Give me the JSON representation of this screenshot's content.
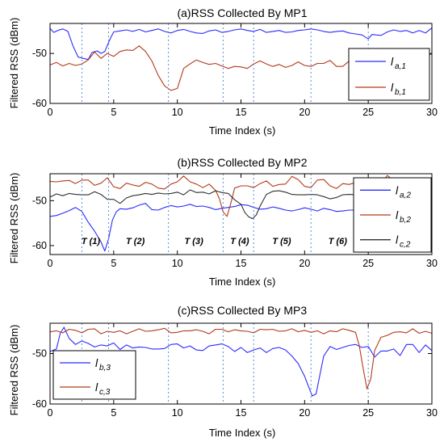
{
  "chart_data": [
    {
      "type": "line",
      "title": "(a)RSS Collected By MP1",
      "xlabel": "Time Index (s)",
      "ylabel": "Filtered RSS (dBm)",
      "xlim": [
        0,
        30
      ],
      "ylim": [
        -60,
        -44
      ],
      "xticks": [
        0,
        5,
        10,
        15,
        20,
        25,
        30
      ],
      "yticks": [
        -50,
        -60
      ],
      "grid": false,
      "legend_position": "right",
      "vlines": [
        2.5,
        4.6,
        9.3,
        13.6,
        16.0,
        20.5,
        25.0
      ],
      "series": [
        {
          "name": "l",
          "sub": "a,1",
          "color": "#2b2bff",
          "x": [
            0,
            0.3,
            0.6,
            1,
            1.4,
            1.8,
            2.2,
            2.6,
            3,
            3.3,
            3.7,
            4,
            4.3,
            4.7,
            5,
            5.5,
            6,
            6.5,
            7,
            7.5,
            8,
            8.5,
            9,
            9.5,
            10,
            10.5,
            11,
            11.5,
            12,
            12.5,
            13,
            13.5,
            14,
            14.5,
            15,
            15.5,
            16,
            16.5,
            17,
            17.5,
            18,
            18.5,
            19,
            19.5,
            20,
            20.5,
            21,
            21.5,
            22,
            22.5,
            23,
            23.5,
            24,
            24.5,
            25,
            25.3,
            25.6,
            26,
            26.5,
            27,
            27.5,
            28,
            28.5,
            29,
            29.5,
            30
          ],
          "y": [
            -45,
            -45.8,
            -45.4,
            -45.1,
            -45.6,
            -48.5,
            -50.7,
            -51,
            -51.2,
            -49.8,
            -49.5,
            -50,
            -49.6,
            -47.2,
            -45.7,
            -45.5,
            -45.3,
            -45.6,
            -45.2,
            -45.7,
            -45.4,
            -45.1,
            -45.6,
            -45.9,
            -45.4,
            -45.2,
            -45.6,
            -45.9,
            -46,
            -45.5,
            -45.3,
            -45.8,
            -45.6,
            -45.3,
            -45.1,
            -45.4,
            -45.6,
            -45.2,
            -45.8,
            -45.6,
            -45.4,
            -45.8,
            -45.7,
            -45.4,
            -45.3,
            -45.1,
            -45.3,
            -45.6,
            -45.8,
            -45.6,
            -45.5,
            -45.9,
            -46.1,
            -46.3,
            -47.1,
            -46.2,
            -46.3,
            -46.4,
            -45.7,
            -45.3,
            -45.6,
            -45.4,
            -45.9,
            -45.4,
            -45.9,
            -44.9
          ]
        },
        {
          "name": "l",
          "sub": "b,1",
          "color": "#b33a1a",
          "x": [
            0,
            0.5,
            1,
            1.5,
            2,
            2.5,
            3,
            3.5,
            4,
            4.5,
            5,
            5.5,
            6,
            6.5,
            7,
            7.5,
            8,
            8.5,
            9,
            9.5,
            10,
            10.5,
            11,
            11.5,
            12,
            12.5,
            13,
            13.5,
            14,
            14.5,
            15,
            15.5,
            16,
            16.5,
            17,
            17.5,
            18,
            18.5,
            19,
            19.5,
            20,
            20.5,
            21,
            21.5,
            22,
            22.5,
            23,
            23.5,
            24,
            24.5,
            25,
            25.5,
            26,
            26.5,
            27,
            27.5,
            28,
            28.5,
            29,
            29.5,
            30
          ],
          "y": [
            -52.3,
            -51.8,
            -52.5,
            -52,
            -52.4,
            -52.1,
            -51.3,
            -49.7,
            -51,
            -50,
            -50.6,
            -49.6,
            -49.3,
            -49.4,
            -48.5,
            -49.6,
            -51.5,
            -54.4,
            -56.5,
            -57.4,
            -57,
            -53,
            -52.1,
            -51.3,
            -51.8,
            -52.2,
            -52,
            -52.5,
            -53,
            -52.6,
            -52.7,
            -53,
            -52.1,
            -51.5,
            -52.1,
            -52.6,
            -52.2,
            -52.8,
            -52.4,
            -51.7,
            -52.4,
            -52.6,
            -52,
            -52,
            -51.4,
            -52.6,
            -52.6,
            -51.5,
            -52.2,
            -51.6,
            -51.4,
            -52.4,
            -51.9,
            -52,
            -51.8,
            -51.5,
            -51.7,
            -50.2,
            -50,
            -50.5,
            -50.1
          ]
        }
      ]
    },
    {
      "type": "line",
      "title": "(b)RSS Collected By MP2",
      "xlabel": "Time Index (s)",
      "ylabel": "Filtered RSS (dBm)",
      "xlim": [
        0,
        30
      ],
      "ylim": [
        -62,
        -44
      ],
      "xticks": [
        0,
        5,
        10,
        15,
        20,
        25,
        30
      ],
      "yticks": [
        -50,
        -60
      ],
      "grid": false,
      "legend_position": "right",
      "vlines": [
        2.5,
        4.6,
        9.3,
        13.6,
        16.0,
        20.5,
        25.0
      ],
      "annotations": [
        {
          "text": "T (1)",
          "x": 3.2
        },
        {
          "text": "T (2)",
          "x": 6.7
        },
        {
          "text": "T (3)",
          "x": 11.3
        },
        {
          "text": "T (4)",
          "x": 14.9
        },
        {
          "text": "T (5)",
          "x": 18.2
        },
        {
          "text": "T (6)",
          "x": 22.6
        }
      ],
      "series": [
        {
          "name": "l",
          "sub": "a,2",
          "color": "#2b2bff",
          "x": [
            0,
            0.5,
            1,
            1.5,
            2,
            2.5,
            3,
            3.5,
            4,
            4.3,
            4.6,
            4.9,
            5.2,
            5.5,
            6,
            6.5,
            7,
            7.5,
            8,
            8.5,
            9,
            9.5,
            10,
            10.5,
            11,
            11.5,
            12,
            12.5,
            13,
            13.5,
            14,
            14.5,
            15,
            15.5,
            16,
            16.5,
            17,
            17.5,
            18,
            18.5,
            19,
            19.5,
            20,
            20.5,
            21,
            21.5,
            22,
            22.5,
            23,
            23.5,
            24,
            24.5,
            25,
            25.5,
            26,
            26.5,
            27,
            27.5,
            28,
            28.5,
            29,
            29.5,
            30
          ],
          "y": [
            -53.5,
            -53.3,
            -52.8,
            -52.2,
            -51.5,
            -52.4,
            -54.8,
            -56.8,
            -59.2,
            -61.2,
            -58.5,
            -54.3,
            -52.5,
            -51.8,
            -51.9,
            -51.6,
            -51,
            -50.6,
            -52,
            -52.1,
            -51.5,
            -51.1,
            -51.4,
            -51.2,
            -50.8,
            -51.3,
            -51.2,
            -51.5,
            -52,
            -51.7,
            -51.5,
            -51.3,
            -50.9,
            -51,
            -51.5,
            -51.9,
            -51.8,
            -51.4,
            -51.7,
            -52.1,
            -52.3,
            -52,
            -51.6,
            -51.9,
            -52.3,
            -51.7,
            -52,
            -52.4,
            -52.3,
            -52.1,
            -52.1,
            -52.4,
            -52.4,
            -51.8,
            -51.6,
            -52.4,
            -52.1,
            -51.5,
            -52,
            -51.6,
            -52.1,
            -51.7,
            -51.6
          ]
        },
        {
          "name": "l",
          "sub": "b,2",
          "color": "#b33a1a",
          "x": [
            0,
            0.5,
            1,
            1.5,
            2,
            2.5,
            3,
            3.5,
            4,
            4.5,
            5,
            5.5,
            6,
            6.5,
            7,
            7.5,
            8,
            8.5,
            9,
            9.5,
            10,
            10.5,
            11,
            11.5,
            12,
            12.5,
            13,
            13.3,
            13.6,
            13.9,
            14.2,
            14.5,
            15,
            15.5,
            16,
            16.5,
            17,
            17.5,
            18,
            18.5,
            19,
            19.5,
            20,
            20.5,
            21,
            21.5,
            22,
            22.5,
            23,
            23.5,
            24,
            24.5,
            25,
            25.5,
            26,
            26.5,
            27,
            27.5,
            28,
            28.5,
            29,
            29.5,
            30
          ],
          "y": [
            -45.7,
            -45.8,
            -45.6,
            -45.5,
            -46.2,
            -45.4,
            -45.4,
            -46.6,
            -46.1,
            -44.9,
            -46.9,
            -47.3,
            -46.1,
            -46.5,
            -46.8,
            -45.9,
            -46.3,
            -47.2,
            -47.4,
            -46.3,
            -45.8,
            -44.5,
            -45.8,
            -46.3,
            -47.1,
            -46.3,
            -47.7,
            -49.5,
            -52.5,
            -53.5,
            -50.6,
            -47.2,
            -46.7,
            -46.7,
            -47.1,
            -46.2,
            -45.6,
            -46.8,
            -46.4,
            -46.3,
            -44.6,
            -45.3,
            -46.8,
            -47.1,
            -45.4,
            -45.3,
            -46.7,
            -47.3,
            -46.2,
            -46.4,
            -45.9,
            -45.4,
            -45.1,
            -45.6,
            -46.1,
            -44.4,
            -45.5,
            -46.3,
            -45.8,
            -45.5,
            -47.1,
            -47.7,
            -45.7
          ]
        },
        {
          "name": "l",
          "sub": "c,2",
          "color": "#303030",
          "x": [
            0,
            0.5,
            1,
            1.5,
            2,
            2.5,
            3,
            3.5,
            4,
            4.5,
            5,
            5.5,
            6,
            6.5,
            7,
            7.5,
            8,
            8.5,
            9,
            9.5,
            10,
            10.5,
            11,
            11.5,
            12,
            12.5,
            13,
            13.5,
            14,
            14.5,
            15,
            15.3,
            15.6,
            15.9,
            16.2,
            16.5,
            17,
            17.5,
            18,
            18.5,
            19,
            19.5,
            20,
            20.5,
            21,
            21.5,
            22,
            22.5,
            23,
            23.5,
            24,
            24.5,
            25,
            25.5,
            26,
            26.5,
            27,
            27.5,
            28,
            28.5,
            29,
            29.5,
            30
          ],
          "y": [
            -49.2,
            -48.5,
            -48.9,
            -48.4,
            -48.6,
            -48.7,
            -48.7,
            -48,
            -48.6,
            -49.7,
            -49.7,
            -50.6,
            -49.4,
            -48.9,
            -48.7,
            -48.4,
            -48.6,
            -48.3,
            -48.5,
            -48.4,
            -48.1,
            -48.7,
            -47.6,
            -48.2,
            -48.1,
            -48.5,
            -47.8,
            -48.2,
            -48.4,
            -49.8,
            -50.8,
            -52.6,
            -53.6,
            -54,
            -53.2,
            -51.2,
            -48.6,
            -47.9,
            -47.8,
            -48.1,
            -48.6,
            -48.7,
            -48.7,
            -48.6,
            -48.7,
            -49.1,
            -49.6,
            -49.3,
            -48.7,
            -48.6,
            -48.7,
            -49.3,
            -48.7,
            -49.2,
            -49.5,
            -49.3,
            -48.9,
            -48.9,
            -49.3,
            -49.4,
            -49.1,
            -49.3,
            -48.9
          ]
        }
      ]
    },
    {
      "type": "line",
      "title": "(c)RSS Collected By MP3",
      "xlabel": "Time Index (s)",
      "ylabel": "Filtered RSS (dBm)",
      "xlim": [
        0,
        30
      ],
      "ylim": [
        -60,
        -44
      ],
      "xticks": [
        0,
        5,
        10,
        15,
        20,
        25,
        30
      ],
      "yticks": [
        -50,
        -60
      ],
      "grid": false,
      "legend_position": "left",
      "vlines": [
        2.5,
        4.6,
        9.3,
        13.6,
        16.0,
        20.5,
        25.0
      ],
      "series": [
        {
          "name": "l",
          "sub": "b,3",
          "color": "#2b2bff",
          "x": [
            0,
            0.5,
            0.8,
            1.1,
            1.5,
            2,
            2.5,
            3,
            3.5,
            4,
            4.5,
            5,
            5.5,
            6,
            6.5,
            7,
            7.5,
            8,
            8.5,
            9,
            9.5,
            10,
            10.5,
            11,
            11.5,
            12,
            12.5,
            13,
            13.5,
            14,
            14.5,
            15,
            15.5,
            16,
            16.5,
            17,
            17.5,
            18,
            18.5,
            19,
            19.5,
            20,
            20.3,
            20.6,
            20.9,
            21.2,
            21.5,
            22,
            22.5,
            23,
            23.5,
            24,
            24.5,
            25,
            25.5,
            26,
            26.5,
            27,
            27.5,
            28,
            28.5,
            29,
            29.5,
            30
          ],
          "y": [
            -49.6,
            -49.1,
            -46,
            -44.8,
            -47,
            -48.2,
            -47.5,
            -48,
            -48.7,
            -48.3,
            -48.5,
            -47.9,
            -49.2,
            -48.3,
            -48.9,
            -48.7,
            -48.8,
            -49.1,
            -49.1,
            -49,
            -48.2,
            -48.1,
            -48.9,
            -48.5,
            -49.3,
            -49.4,
            -48.5,
            -48.3,
            -48.1,
            -48.6,
            -49.6,
            -48.8,
            -49.8,
            -49.3,
            -48.9,
            -49.8,
            -49,
            -48.8,
            -49.3,
            -50.5,
            -52,
            -54.5,
            -56.5,
            -58.4,
            -58,
            -54.2,
            -50.5,
            -48.6,
            -49.2,
            -48.8,
            -48.4,
            -48.2,
            -48.8,
            -48.6,
            -50.7,
            -49.5,
            -49.5,
            -49.1,
            -50.4,
            -48.2,
            -48.2,
            -49.8,
            -48.3,
            -49.4
          ]
        },
        {
          "name": "l",
          "sub": "c,3",
          "color": "#b33a1a",
          "x": [
            0,
            0.5,
            1,
            1.5,
            2,
            2.5,
            3,
            3.5,
            4,
            4.5,
            5,
            5.5,
            6,
            6.5,
            7,
            7.5,
            8,
            8.5,
            9,
            9.5,
            10,
            10.5,
            11,
            11.5,
            12,
            12.5,
            13,
            13.5,
            14,
            14.5,
            15,
            15.5,
            16,
            16.5,
            17,
            17.5,
            18,
            18.5,
            19,
            19.5,
            20,
            20.5,
            21,
            21.5,
            22,
            22.5,
            23,
            23.5,
            24,
            24.3,
            24.6,
            24.9,
            25.2,
            25.5,
            26,
            26.5,
            27,
            27.5,
            28,
            28.5,
            29,
            29.5,
            30
          ],
          "y": [
            -45.7,
            -45.5,
            -45.9,
            -45.2,
            -45.4,
            -45.9,
            -45.2,
            -45.1,
            -46.1,
            -45.6,
            -45.8,
            -45.5,
            -46.1,
            -45.6,
            -45.1,
            -45.6,
            -45.5,
            -45.3,
            -45,
            -45.9,
            -45.8,
            -45.5,
            -45.5,
            -45.3,
            -45.6,
            -46.1,
            -45.2,
            -45.2,
            -45.7,
            -45.3,
            -45.5,
            -45.6,
            -45.9,
            -45.2,
            -45.3,
            -45.2,
            -45.6,
            -45.5,
            -45.1,
            -45.7,
            -45.4,
            -45.8,
            -45.5,
            -46.1,
            -45.5,
            -45.7,
            -45.1,
            -45.4,
            -45.8,
            -48.5,
            -53,
            -57,
            -55,
            -49.4,
            -46.8,
            -46.4,
            -45.8,
            -45.7,
            -45.9,
            -45.1,
            -46,
            -45.6,
            -46
          ]
        }
      ]
    }
  ]
}
